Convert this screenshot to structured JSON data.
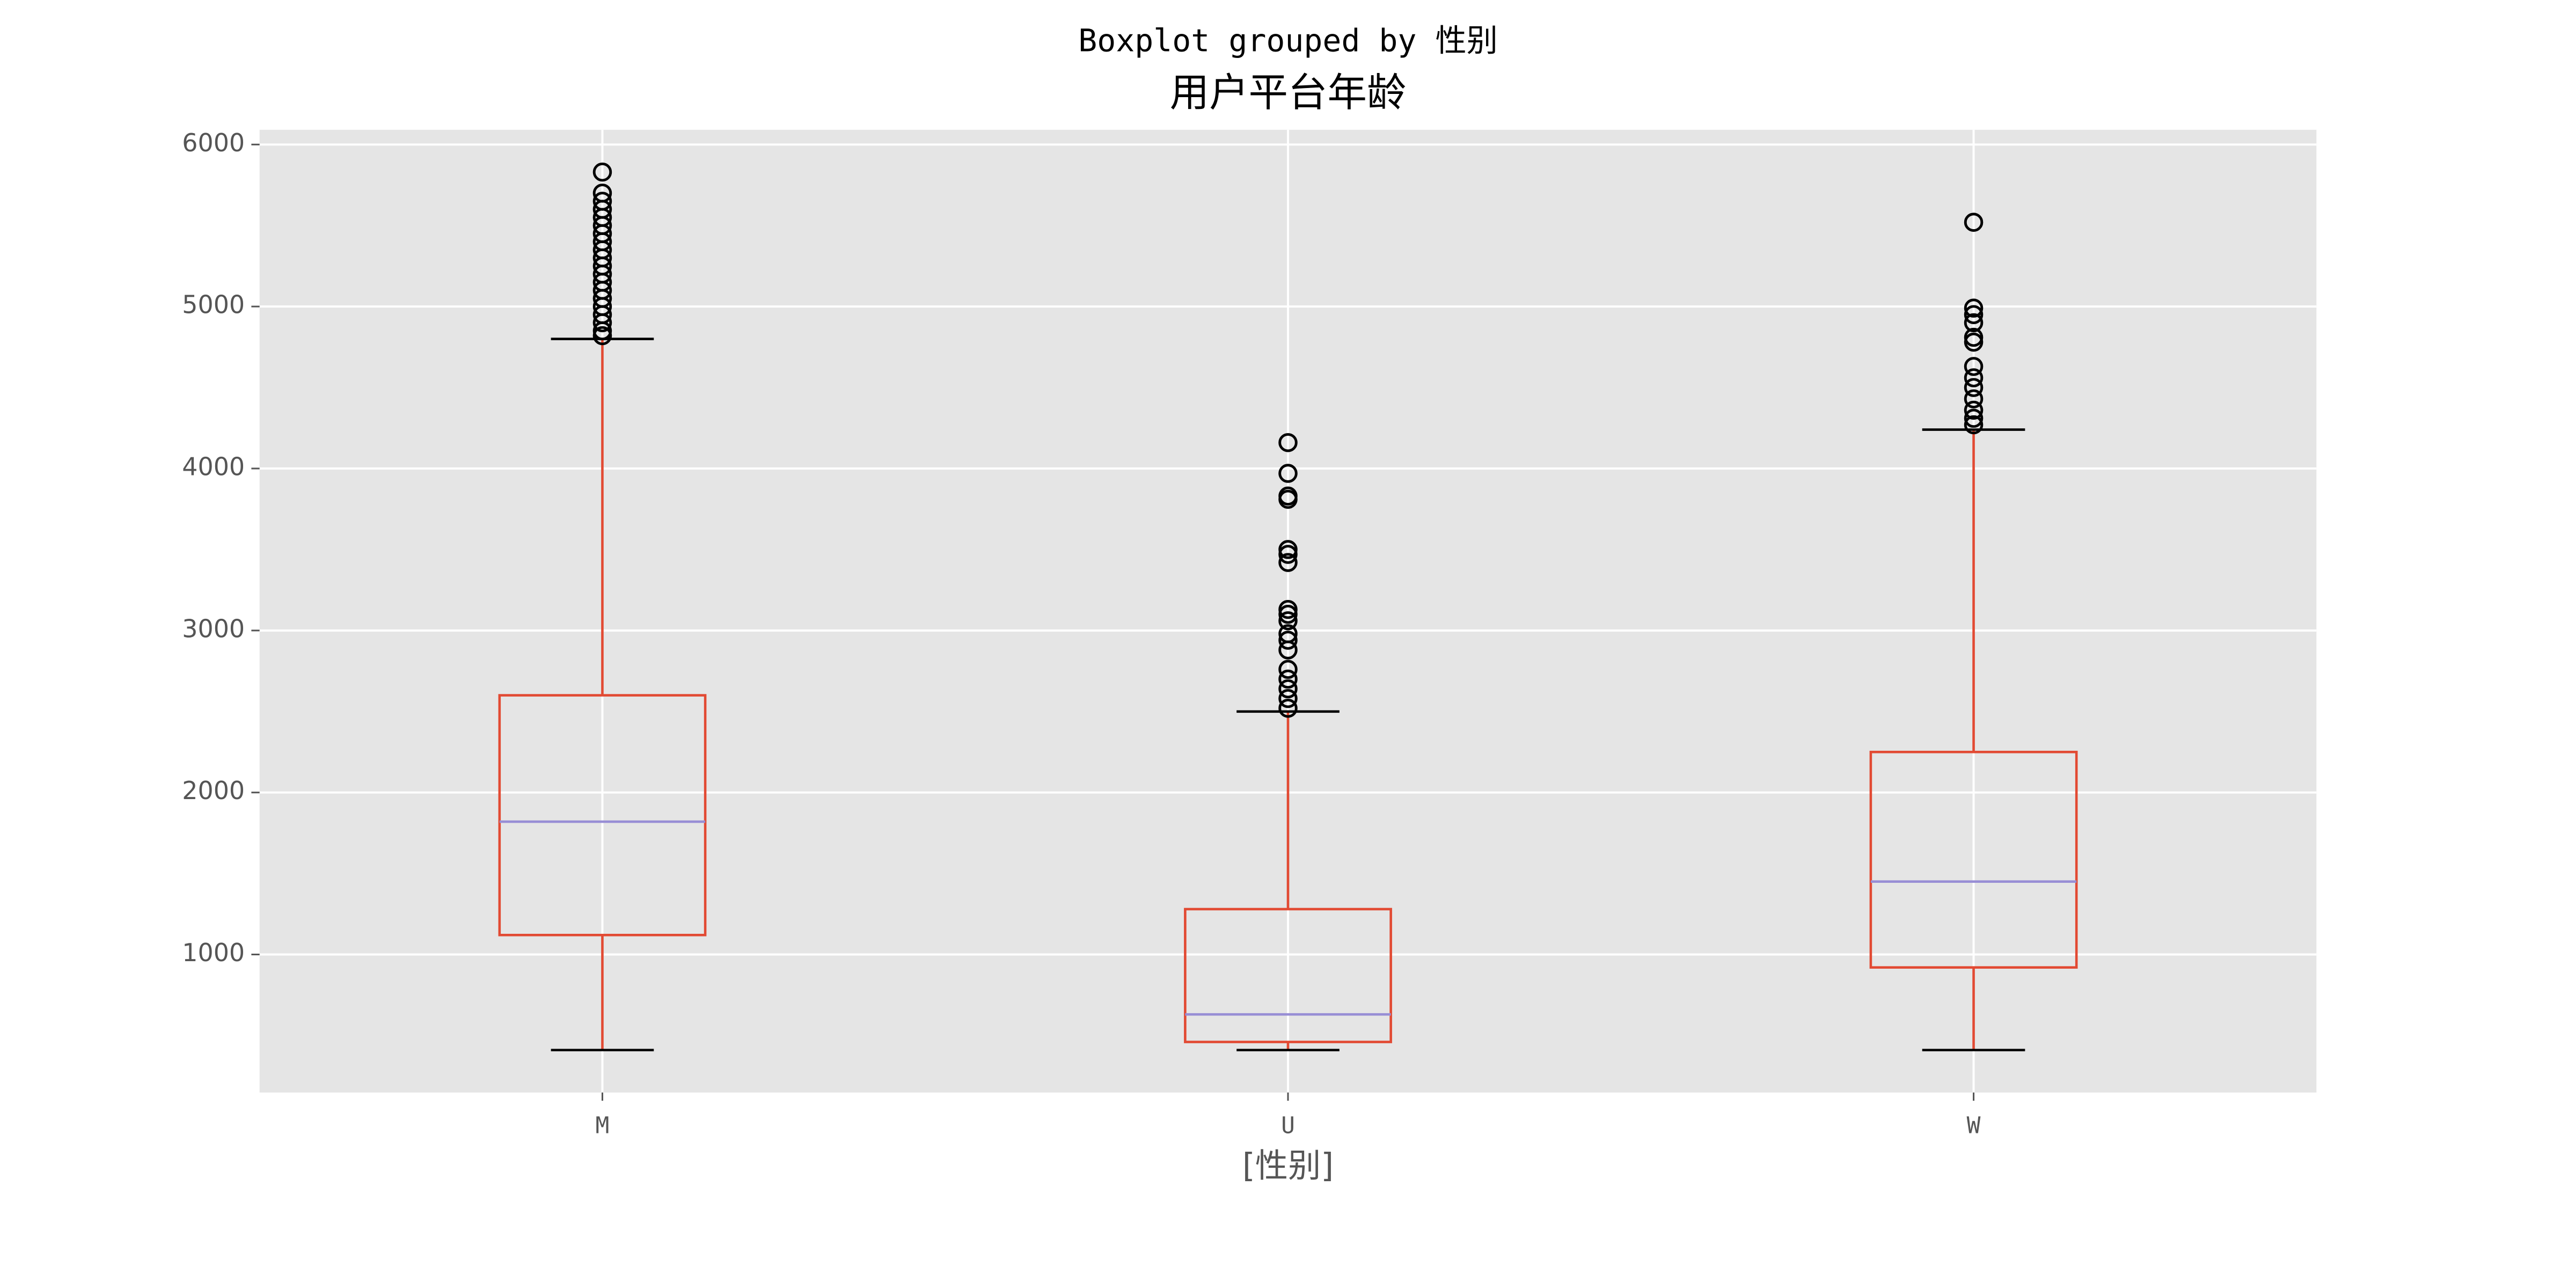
{
  "chart_data": {
    "type": "box",
    "suptitle": "Boxplot grouped by 性别",
    "title": "用户平台年龄",
    "x_label": "[性别]",
    "categories": [
      "M",
      "U",
      "W"
    ],
    "boxes": [
      {
        "whislo": 410,
        "q1": 1120,
        "med": 1820,
        "q3": 2600,
        "whishi": 4800,
        "fliers": [
          4820,
          4850,
          4900,
          4950,
          5000,
          5050,
          5100,
          5150,
          5200,
          5250,
          5300,
          5350,
          5400,
          5450,
          5500,
          5550,
          5600,
          5650,
          5700,
          5830
        ]
      },
      {
        "whislo": 410,
        "q1": 460,
        "med": 630,
        "q3": 1280,
        "whishi": 2500,
        "fliers": [
          2520,
          2580,
          2640,
          2700,
          2760,
          2880,
          2940,
          2980,
          3060,
          3100,
          3130,
          3420,
          3470,
          3500,
          3810,
          3830,
          3970,
          4160
        ]
      },
      {
        "whislo": 410,
        "q1": 920,
        "med": 1450,
        "q3": 2250,
        "whishi": 4240,
        "fliers": [
          4270,
          4310,
          4360,
          4430,
          4500,
          4560,
          4630,
          4780,
          4810,
          4900,
          4950,
          4990,
          5520
        ]
      }
    ],
    "box_color": "#E24A33",
    "median_color": "#988ED5",
    "cap_color": "#000000",
    "flier_color": "#000000",
    "ylim": [
      148,
      6091
    ],
    "yticks": [
      1000,
      2000,
      3000,
      4000,
      5000,
      6000
    ],
    "grid": true
  }
}
